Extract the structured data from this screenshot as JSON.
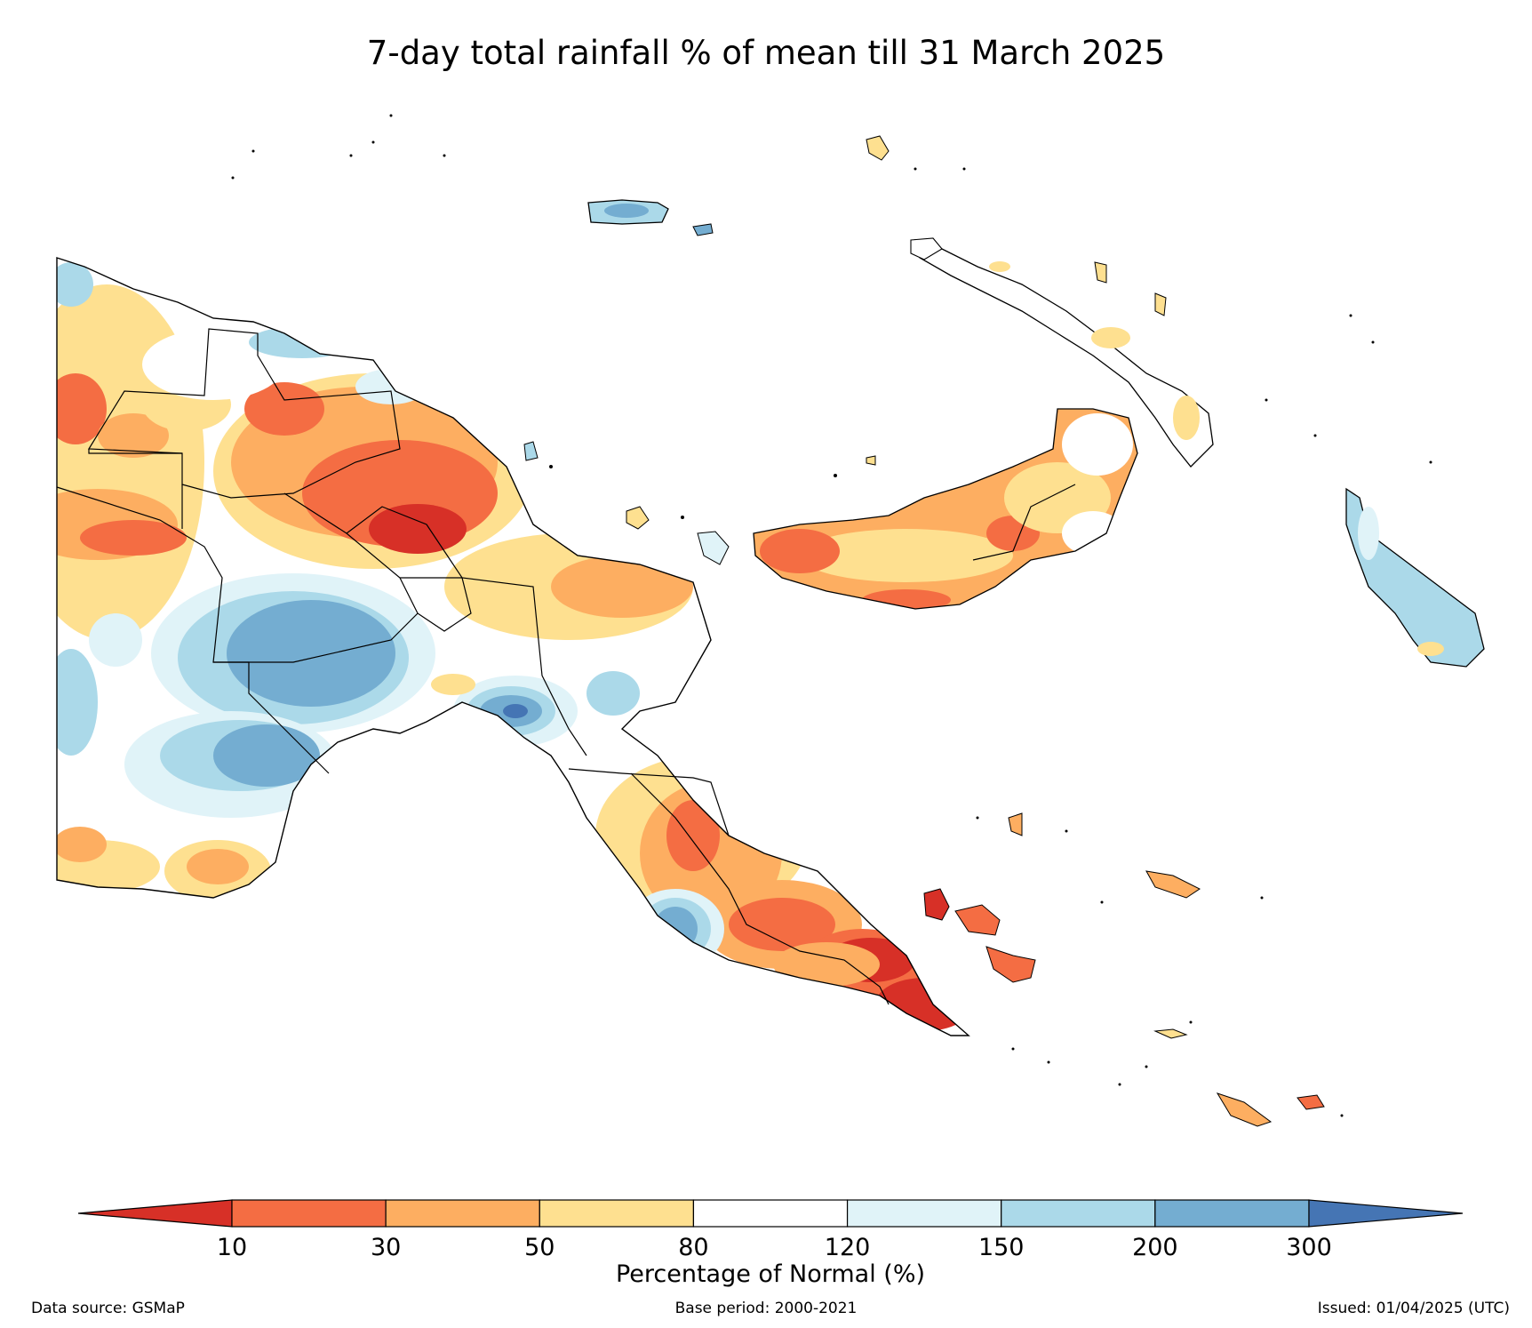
{
  "title": "7-day total rainfall % of mean till 31 March 2025",
  "colorbar": {
    "label": "Percentage of Normal (%)",
    "ticks": [
      "10",
      "30",
      "50",
      "80",
      "120",
      "150",
      "200",
      "300"
    ],
    "colors": {
      "below_10": "#d73027",
      "10_30": "#f46d43",
      "30_50": "#fdae61",
      "50_80": "#fee090",
      "80_120": "#ffffff",
      "120_150": "#e0f3f8",
      "150_200": "#abd9e9",
      "200_300": "#74add1",
      "above_300": "#4575b4"
    }
  },
  "footer": {
    "source": "Data source: GSMaP",
    "base_period": "Base period: 2000-2021",
    "issued": "Issued: 01/04/2025 (UTC)"
  }
}
